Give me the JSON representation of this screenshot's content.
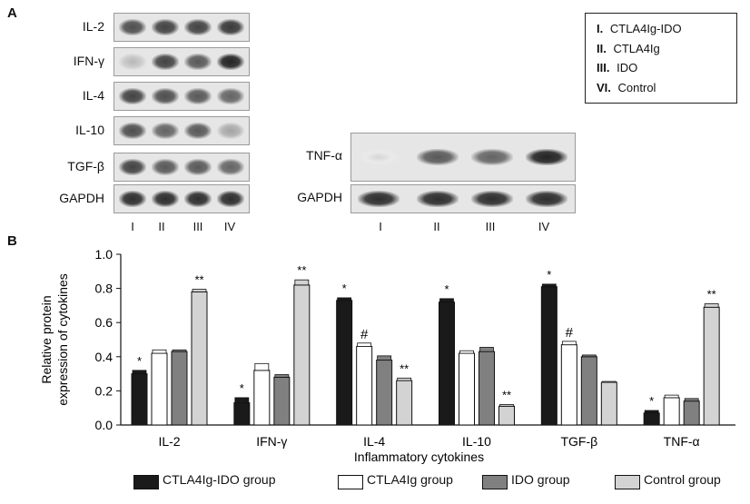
{
  "panel_a": {
    "letter": "A",
    "left_blot_labels": [
      "IL-2",
      "IFN-γ",
      "IL-4",
      "IL-10",
      "TGF-β",
      "GAPDH"
    ],
    "left_band_intensity": [
      [
        0.75,
        0.8,
        0.8,
        0.85
      ],
      [
        0.25,
        0.8,
        0.7,
        0.95
      ],
      [
        0.8,
        0.75,
        0.7,
        0.65
      ],
      [
        0.75,
        0.65,
        0.7,
        0.35
      ],
      [
        0.8,
        0.7,
        0.7,
        0.65
      ],
      [
        0.9,
        0.9,
        0.9,
        0.9
      ]
    ],
    "right_blot_labels": [
      "TNF-α",
      "GAPDH"
    ],
    "right_band_intensity": [
      [
        0.1,
        0.7,
        0.65,
        0.95
      ],
      [
        0.9,
        0.9,
        0.9,
        0.9
      ]
    ],
    "lanes": [
      "I",
      "II",
      "III",
      "IV"
    ]
  },
  "legend_a": {
    "items": [
      {
        "num": "I.",
        "label": "CTLA4Ig-IDO"
      },
      {
        "num": "II.",
        "label": "CTLA4Ig"
      },
      {
        "num": "III.",
        "label": "IDO"
      },
      {
        "num": "VI.",
        "label": "Control"
      }
    ]
  },
  "panel_b": {
    "letter": "B"
  },
  "chart_data": {
    "type": "bar",
    "categories": [
      "IL-2",
      "IFN-γ",
      "IL-4",
      "IL-10",
      "TGF-β",
      "TNF-α"
    ],
    "series": [
      {
        "name": "CTLA4Ig-IDO group",
        "values": [
          0.3,
          0.13,
          0.73,
          0.72,
          0.81,
          0.07
        ],
        "errors": [
          0.02,
          0.03,
          0.015,
          0.02,
          0.015,
          0.015
        ],
        "color": "#1a1a1a"
      },
      {
        "name": "CTLA4Ig group",
        "values": [
          0.42,
          0.32,
          0.46,
          0.42,
          0.47,
          0.16
        ],
        "errors": [
          0.02,
          0.04,
          0.02,
          0.015,
          0.02,
          0.015
        ],
        "color": "#ffffff"
      },
      {
        "name": "IDO group",
        "values": [
          0.43,
          0.28,
          0.38,
          0.43,
          0.4,
          0.14
        ],
        "errors": [
          0.01,
          0.015,
          0.025,
          0.025,
          0.01,
          0.015
        ],
        "color": "#808080"
      },
      {
        "name": "Control group",
        "values": [
          0.78,
          0.82,
          0.26,
          0.11,
          0.25,
          0.69
        ],
        "errors": [
          0.015,
          0.03,
          0.015,
          0.01,
          0.005,
          0.02
        ],
        "color": "#d3d3d3"
      }
    ],
    "annotations": [
      [
        "*",
        "",
        "",
        "**"
      ],
      [
        "*",
        "",
        "",
        "**"
      ],
      [
        "*",
        "#",
        "",
        "**"
      ],
      [
        "*",
        "",
        "",
        "**"
      ],
      [
        "*",
        "#",
        "",
        ""
      ],
      [
        "*",
        "",
        "",
        "**"
      ]
    ],
    "ylabel": "Relative protein\nexpression of cytokines",
    "xlabel": "Inflammatory cytokines",
    "ylim": [
      0.0,
      1.0
    ],
    "yticks": [
      "0.0",
      "0.2",
      "0.4",
      "0.6",
      "0.8",
      "1.0"
    ]
  }
}
